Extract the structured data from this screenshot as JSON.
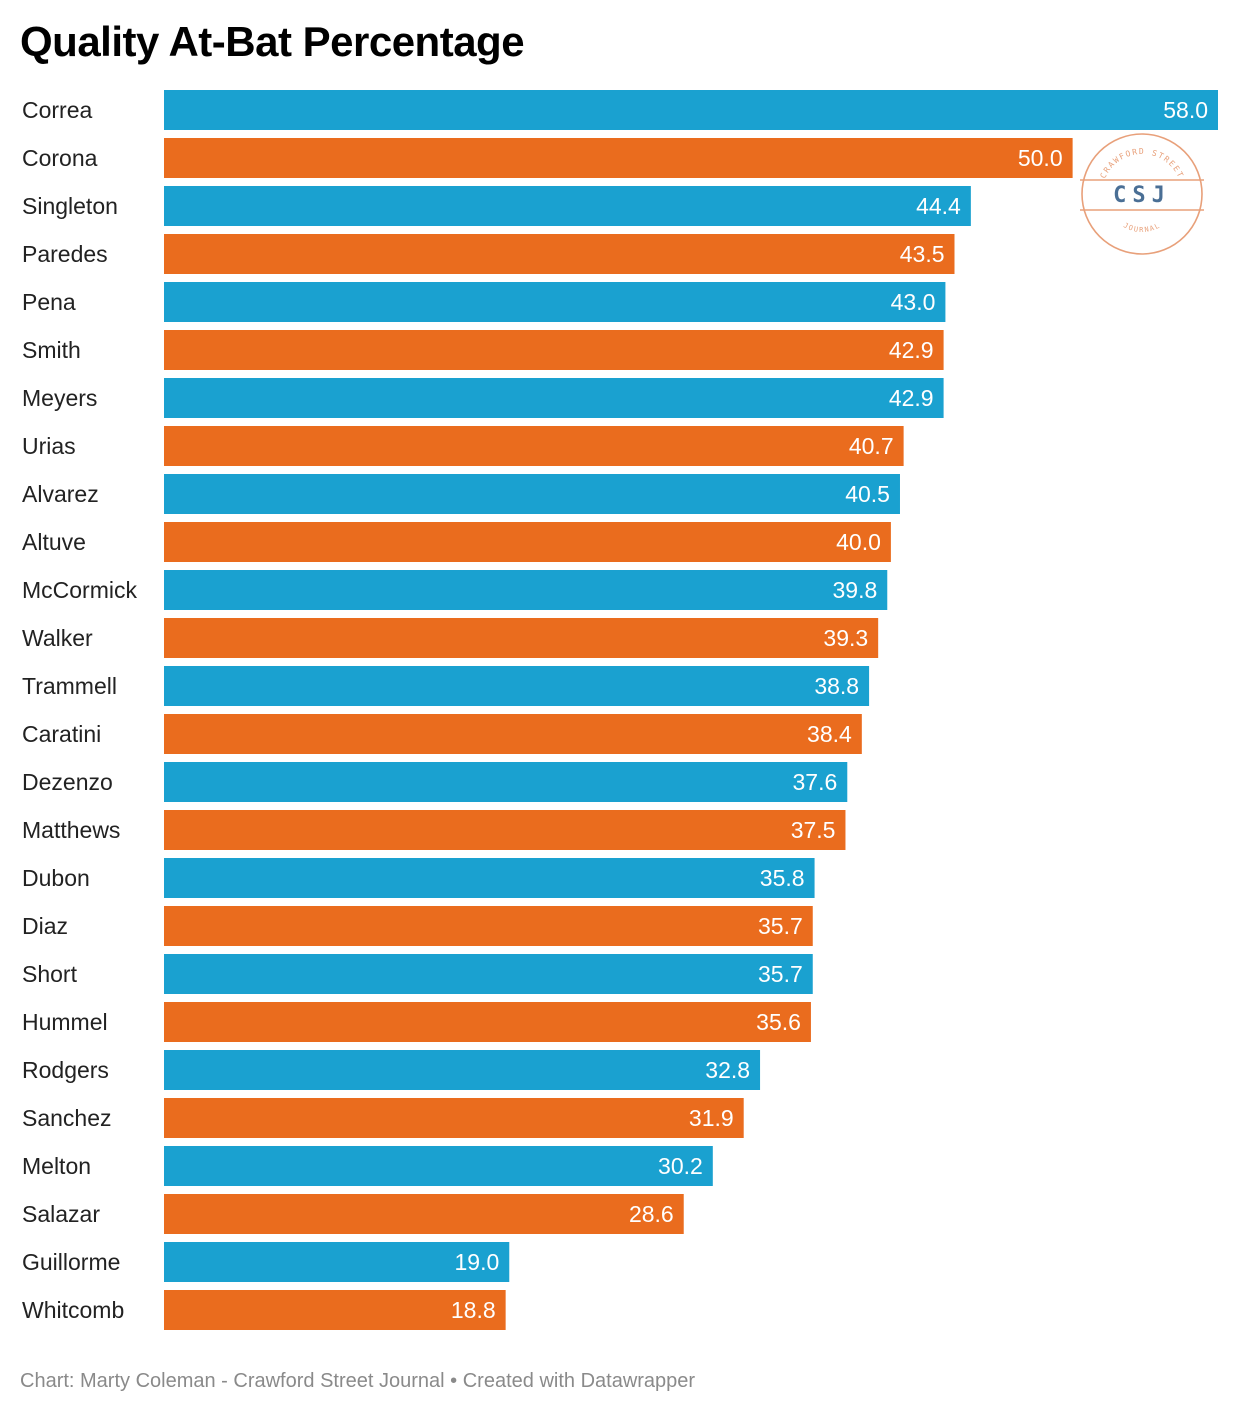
{
  "title": "Quality At-Bat Percentage",
  "footer": {
    "credit": "Chart: Marty Coleman - Crawford Street Journal",
    "separator": "•",
    "tool": "Created with Datawrapper"
  },
  "logo": {
    "top_text": "CRAWFORD STREET",
    "initials": "CSJ",
    "bottom_text": "JOURNAL",
    "color": "#e8a07a",
    "initials_color": "#4a6f95"
  },
  "colors": {
    "blue": "#1aa1d0",
    "orange": "#ea6c1e"
  },
  "chart_data": {
    "type": "bar",
    "orientation": "horizontal",
    "title": "Quality At-Bat Percentage",
    "xlabel": "",
    "ylabel": "",
    "xlim": [
      0,
      58
    ],
    "grid": false,
    "categories": [
      "Correa",
      "Corona",
      "Singleton",
      "Paredes",
      "Pena",
      "Smith",
      "Meyers",
      "Urias",
      "Alvarez",
      "Altuve",
      "McCormick",
      "Walker",
      "Trammell",
      "Caratini",
      "Dezenzo",
      "Matthews",
      "Dubon",
      "Diaz",
      "Short",
      "Hummel",
      "Rodgers",
      "Sanchez",
      "Melton",
      "Salazar",
      "Guillorme",
      "Whitcomb"
    ],
    "values": [
      58.0,
      50.0,
      44.4,
      43.5,
      43.0,
      42.9,
      42.9,
      40.7,
      40.5,
      40.0,
      39.8,
      39.3,
      38.8,
      38.4,
      37.6,
      37.5,
      35.8,
      35.7,
      35.7,
      35.6,
      32.8,
      31.9,
      30.2,
      28.6,
      19.0,
      18.8
    ],
    "labels": [
      "58.0",
      "50.0",
      "44.4",
      "43.5",
      "43.0",
      "42.9",
      "42.9",
      "40.7",
      "40.5",
      "40.0",
      "39.8",
      "39.3",
      "38.8",
      "38.4",
      "37.6",
      "37.5",
      "35.8",
      "35.7",
      "35.7",
      "35.6",
      "32.8",
      "31.9",
      "30.2",
      "28.6",
      "19.0",
      "18.8"
    ],
    "bar_colors": [
      "blue",
      "orange",
      "blue",
      "orange",
      "blue",
      "orange",
      "blue",
      "orange",
      "blue",
      "orange",
      "blue",
      "orange",
      "blue",
      "orange",
      "blue",
      "orange",
      "blue",
      "orange",
      "blue",
      "orange",
      "blue",
      "orange",
      "blue",
      "orange",
      "blue",
      "orange"
    ]
  }
}
